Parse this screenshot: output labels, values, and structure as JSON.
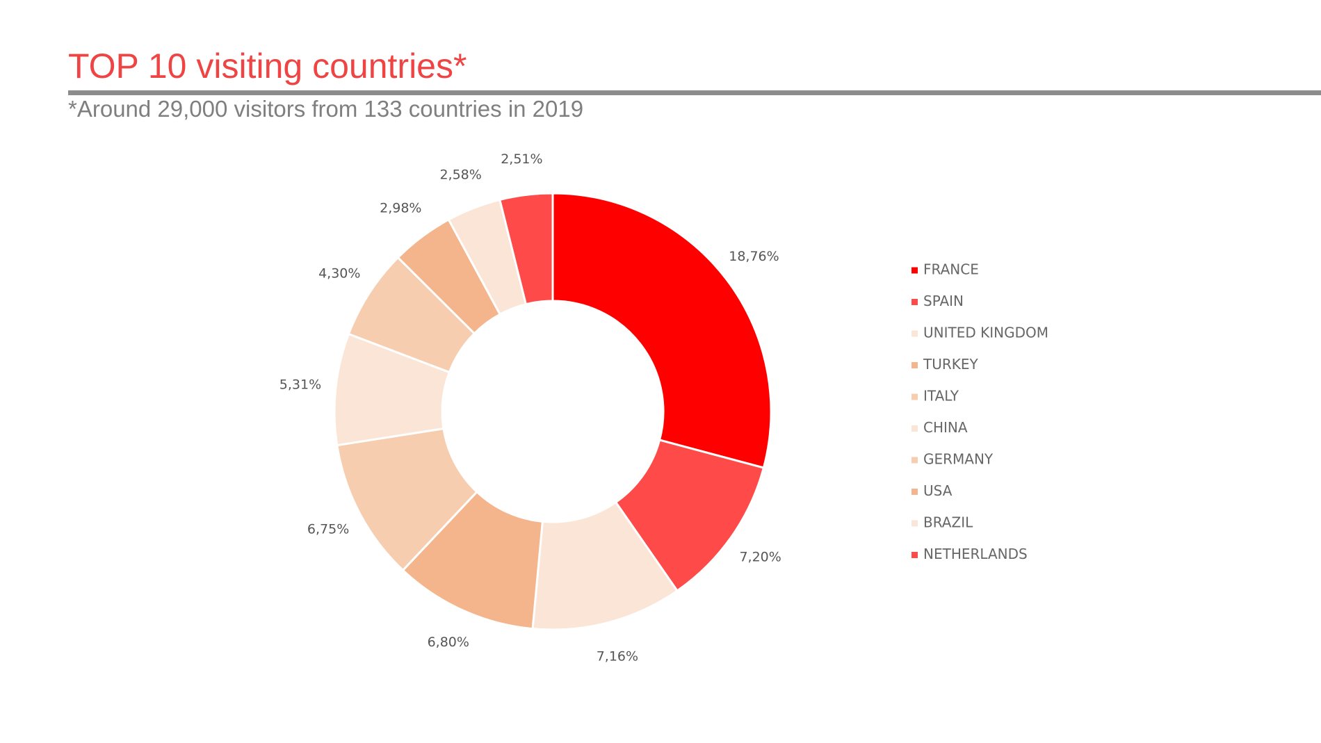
{
  "slide": {
    "title": "TOP 10 visiting countries*",
    "subtitle": "*Around 29,000 visitors from 133 countries in 2019"
  },
  "chart_data": {
    "type": "pie",
    "variant": "donut",
    "categories": [
      "FRANCE",
      "SPAIN",
      "UNITED KINGDOM",
      "TURKEY",
      "ITALY",
      "CHINA",
      "GERMANY",
      "USA",
      "BRAZIL",
      "NETHERLANDS"
    ],
    "values": [
      18.76,
      7.2,
      7.16,
      6.8,
      6.75,
      5.31,
      4.3,
      2.98,
      2.58,
      2.51
    ],
    "labels": [
      "18,76%",
      "7,20%",
      "7,16%",
      "6,80%",
      "6,75%",
      "5,31%",
      "4,30%",
      "2,98%",
      "2,58%",
      "2,51%"
    ],
    "colors": [
      "#ff0000",
      "#ff4a4a",
      "#fbe5d6",
      "#f4b58c",
      "#f7cdb0",
      "#fbe5d6",
      "#f7cdb0",
      "#f4b58c",
      "#fbe5d6",
      "#ff4a4a"
    ],
    "legend_position": "right",
    "start": "top",
    "direction": "clockwise"
  }
}
